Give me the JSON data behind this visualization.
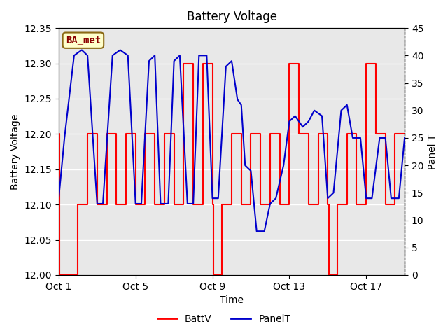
{
  "title": "Battery Voltage",
  "xlabel": "Time",
  "ylabel_left": "Battery Voltage",
  "ylabel_right": "Panel T",
  "ylim_left": [
    12.0,
    12.35
  ],
  "ylim_right": [
    0,
    45
  ],
  "yticks_left": [
    12.0,
    12.05,
    12.1,
    12.15,
    12.2,
    12.25,
    12.3,
    12.35
  ],
  "yticks_right": [
    0,
    5,
    10,
    15,
    20,
    25,
    30,
    35,
    40,
    45
  ],
  "xlim": [
    0,
    18
  ],
  "xtick_positions": [
    0,
    4,
    8,
    12,
    16
  ],
  "xtick_labels": [
    "Oct 1",
    "Oct 5",
    "Oct 9",
    "Oct 13",
    "Oct 17"
  ],
  "background_color": "#ffffff",
  "plot_bg_color": "#e8e8e8",
  "grid_color": "#ffffff",
  "annotation_text": "BA_met",
  "annotation_bg": "#ffffcc",
  "annotation_border": "#8B6914",
  "annotation_text_color": "#8B0000",
  "batt_color": "#ff0000",
  "panel_color": "#0000cc",
  "legend_labels": [
    "BattV",
    "PanelT"
  ],
  "batt_data_x": [
    0,
    0.05,
    0.05,
    1.0,
    1.0,
    1.5,
    1.5,
    2.0,
    2.0,
    2.5,
    2.5,
    3.0,
    3.0,
    3.5,
    3.5,
    4.0,
    4.0,
    4.5,
    4.5,
    5.0,
    5.0,
    5.5,
    5.5,
    6.0,
    6.0,
    6.5,
    6.5,
    7.0,
    7.0,
    7.5,
    7.5,
    8.0,
    8.0,
    8.05,
    8.05,
    8.5,
    8.5,
    9.0,
    9.0,
    9.5,
    9.5,
    10.0,
    10.0,
    10.5,
    10.5,
    11.0,
    11.0,
    11.5,
    11.5,
    12.0,
    12.0,
    12.5,
    12.5,
    13.0,
    13.0,
    13.5,
    13.5,
    14.0,
    14.0,
    14.05,
    14.05,
    14.5,
    14.5,
    15.0,
    15.0,
    15.5,
    15.5,
    16.0,
    16.0,
    16.5,
    16.5,
    17.0,
    17.0,
    17.5,
    17.5,
    18.0
  ],
  "batt_data_y": [
    12.2,
    12.2,
    12.0,
    12.0,
    12.1,
    12.1,
    12.2,
    12.2,
    12.1,
    12.1,
    12.2,
    12.2,
    12.1,
    12.1,
    12.2,
    12.2,
    12.1,
    12.1,
    12.2,
    12.2,
    12.1,
    12.1,
    12.2,
    12.2,
    12.1,
    12.1,
    12.3,
    12.3,
    12.1,
    12.1,
    12.3,
    12.3,
    12.1,
    12.1,
    12.0,
    12.0,
    12.1,
    12.1,
    12.2,
    12.2,
    12.1,
    12.1,
    12.2,
    12.2,
    12.1,
    12.1,
    12.2,
    12.2,
    12.1,
    12.1,
    12.3,
    12.3,
    12.2,
    12.2,
    12.1,
    12.1,
    12.2,
    12.2,
    12.1,
    12.1,
    12.0,
    12.0,
    12.1,
    12.1,
    12.2,
    12.2,
    12.1,
    12.1,
    12.3,
    12.3,
    12.2,
    12.2,
    12.1,
    12.1,
    12.2,
    12.2
  ],
  "panel_data_x": [
    0,
    0.3,
    0.8,
    1.2,
    1.5,
    2.0,
    2.3,
    2.8,
    3.2,
    3.6,
    4.0,
    4.3,
    4.7,
    5.0,
    5.3,
    5.7,
    6.0,
    6.3,
    6.7,
    7.0,
    7.3,
    7.7,
    8.0,
    8.3,
    8.7,
    9.0,
    9.3,
    9.5,
    9.7,
    10.0,
    10.3,
    10.7,
    11.0,
    11.3,
    11.7,
    12.0,
    12.3,
    12.7,
    13.0,
    13.3,
    13.7,
    14.0,
    14.3,
    14.7,
    15.0,
    15.3,
    15.7,
    16.0,
    16.3,
    16.7,
    17.0,
    17.3,
    17.7,
    18.0
  ],
  "panel_data_y": [
    14,
    25,
    40,
    41,
    40,
    13,
    13,
    40,
    41,
    40,
    13,
    13,
    39,
    40,
    13,
    13,
    39,
    40,
    13,
    13,
    40,
    40,
    14,
    14,
    38,
    39,
    32,
    31,
    20,
    19,
    8,
    8,
    13,
    14,
    20,
    28,
    29,
    27,
    28,
    30,
    29,
    14,
    15,
    30,
    31,
    25,
    25,
    14,
    14,
    25,
    25,
    14,
    14,
    25
  ]
}
